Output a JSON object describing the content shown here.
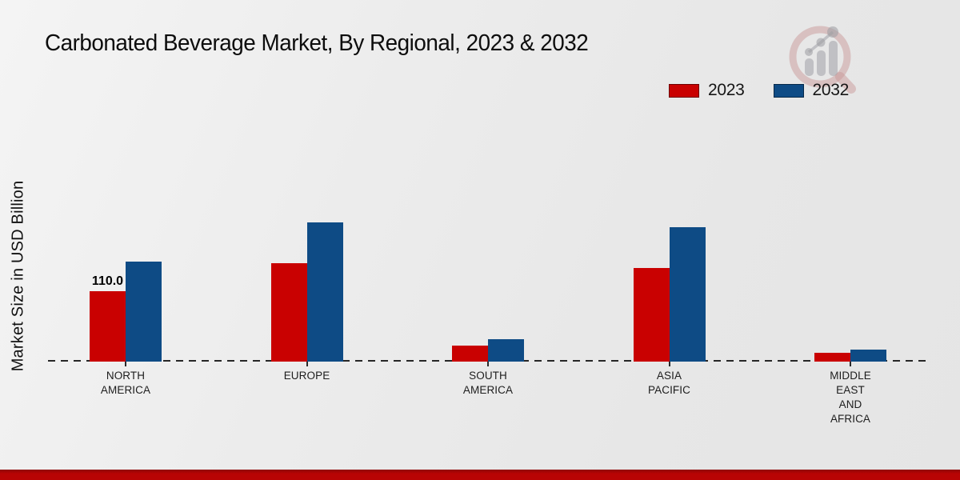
{
  "title": "Carbonated Beverage Market, By Regional, 2023 & 2032",
  "ylabel": "Market Size in USD Billion",
  "watermark_icon": "magnifier-bar-chart-logo",
  "footer": {
    "bar_color": "#b80404"
  },
  "chart_data": {
    "type": "bar",
    "title": "Carbonated Beverage Market, By Regional, 2023 & 2032",
    "xlabel": "",
    "ylabel": "Market Size in USD Billion",
    "categories": [
      "NORTH AMERICA",
      "EUROPE",
      "SOUTH AMERICA",
      "ASIA PACIFIC",
      "MIDDLE EAST AND AFRICA"
    ],
    "category_lines": [
      [
        "NORTH",
        "AMERICA"
      ],
      [
        "EUROPE"
      ],
      [
        "SOUTH",
        "AMERICA"
      ],
      [
        "ASIA",
        "PACIFIC"
      ],
      [
        "MIDDLE",
        "EAST",
        "AND",
        "AFRICA"
      ]
    ],
    "series": [
      {
        "name": "2023",
        "color": "#c90101",
        "values": [
          110.0,
          154,
          25,
          146,
          14
        ]
      },
      {
        "name": "2032",
        "color": "#0e4b85",
        "values": [
          156,
          218,
          35,
          210,
          19
        ]
      }
    ],
    "annotations": [
      {
        "series": 0,
        "category": 0,
        "text": "110.0"
      }
    ],
    "ylim": [
      0,
      230
    ],
    "grid": false,
    "baseline_style": "dashed",
    "legend_position": "top-right"
  }
}
